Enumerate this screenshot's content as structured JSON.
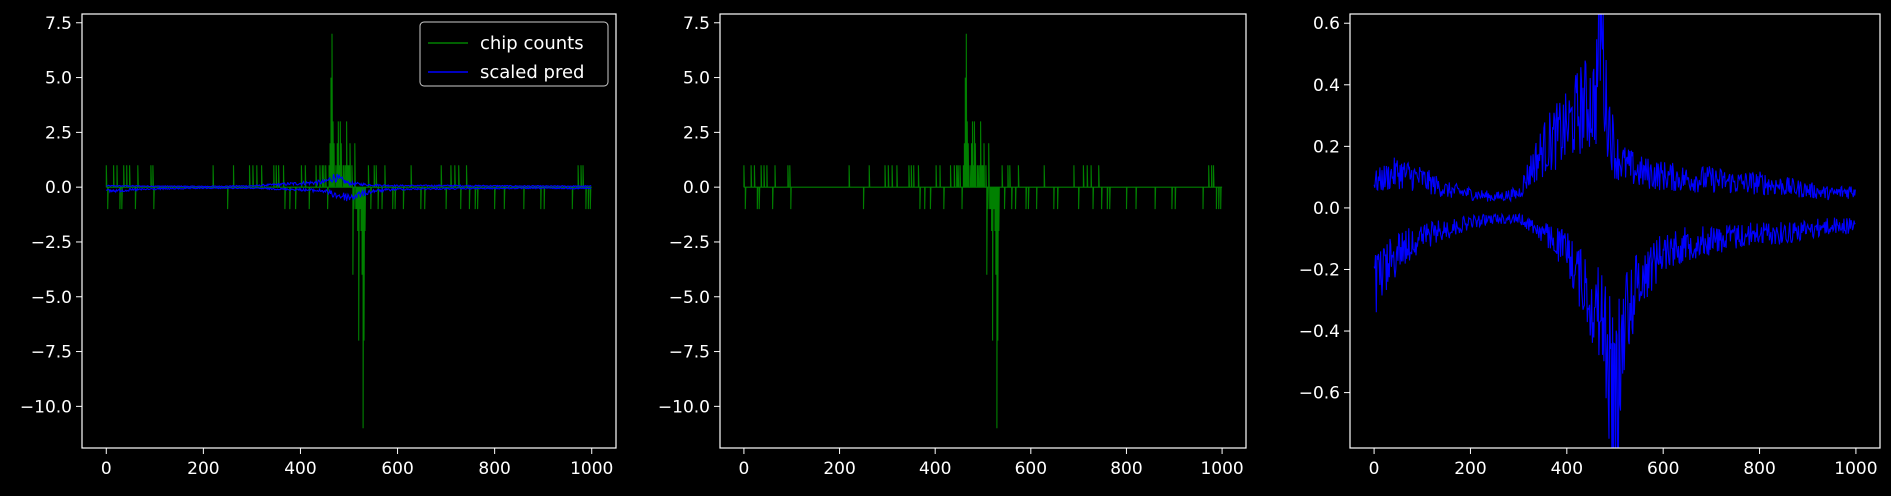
{
  "colors": {
    "background": "#000000",
    "axes": "#ffffff",
    "counts": "#008000",
    "pred": "#0000ff"
  },
  "chart_data": [
    {
      "type": "line",
      "title": "",
      "xlabel": "",
      "ylabel": "",
      "xlim": [
        -50,
        1050
      ],
      "ylim": [
        -11.9,
        7.9
      ],
      "xticks": [
        0,
        200,
        400,
        600,
        800,
        1000
      ],
      "yticks": [
        -10.0,
        -7.5,
        -5.0,
        -2.5,
        0.0,
        2.5,
        5.0,
        7.5
      ],
      "yticklabels": [
        "−10.0",
        "−7.5",
        "−5.0",
        "−2.5",
        "0.0",
        "2.5",
        "5.0",
        "7.5"
      ],
      "grid": false,
      "legend": {
        "placement": "upper right",
        "entries": [
          "chip counts",
          "scaled pred"
        ]
      },
      "series": [
        {
          "name": "chip counts",
          "color": "#008000",
          "spikes": [
            [
              0,
              1
            ],
            [
              3,
              -1
            ],
            [
              15,
              1
            ],
            [
              22,
              1
            ],
            [
              28,
              -1
            ],
            [
              32,
              -1
            ],
            [
              36,
              1
            ],
            [
              42,
              1
            ],
            [
              48,
              1
            ],
            [
              60,
              -1
            ],
            [
              65,
              1
            ],
            [
              92,
              1
            ],
            [
              96,
              1
            ],
            [
              98,
              -1
            ],
            [
              220,
              1
            ],
            [
              250,
              -1
            ],
            [
              262,
              1
            ],
            [
              295,
              1
            ],
            [
              302,
              1
            ],
            [
              310,
              1
            ],
            [
              320,
              1
            ],
            [
              345,
              1
            ],
            [
              350,
              1
            ],
            [
              355,
              1
            ],
            [
              365,
              1
            ],
            [
              368,
              -1
            ],
            [
              378,
              -1
            ],
            [
              390,
              -1
            ],
            [
              402,
              1
            ],
            [
              410,
              1
            ],
            [
              418,
              -1
            ],
            [
              432,
              1
            ],
            [
              440,
              1
            ],
            [
              445,
              1
            ],
            [
              448,
              1
            ],
            [
              452,
              1
            ],
            [
              456,
              -1
            ],
            [
              459,
              1
            ],
            [
              461,
              2
            ],
            [
              463,
              5
            ],
            [
              465,
              7
            ],
            [
              467,
              3
            ],
            [
              469,
              2
            ],
            [
              473,
              1
            ],
            [
              476,
              2
            ],
            [
              478,
              3
            ],
            [
              480,
              1
            ],
            [
              482,
              3
            ],
            [
              484,
              2
            ],
            [
              488,
              1
            ],
            [
              490,
              1
            ],
            [
              493,
              1
            ],
            [
              495,
              3
            ],
            [
              498,
              1
            ],
            [
              500,
              1
            ],
            [
              502,
              2
            ],
            [
              506,
              1
            ],
            [
              508,
              -4
            ],
            [
              510,
              -1
            ],
            [
              512,
              2
            ],
            [
              514,
              -1
            ],
            [
              516,
              -1
            ],
            [
              518,
              -2
            ],
            [
              520,
              -7
            ],
            [
              523,
              -1
            ],
            [
              525,
              -2
            ],
            [
              527,
              -4
            ],
            [
              529,
              -11
            ],
            [
              531,
              -7
            ],
            [
              533,
              -2
            ],
            [
              540,
              1
            ],
            [
              545,
              -1
            ],
            [
              552,
              1
            ],
            [
              556,
              1
            ],
            [
              560,
              -1
            ],
            [
              568,
              -1
            ],
            [
              574,
              1
            ],
            [
              590,
              -1
            ],
            [
              595,
              -1
            ],
            [
              612,
              -1
            ],
            [
              628,
              1
            ],
            [
              648,
              -1
            ],
            [
              656,
              -1
            ],
            [
              690,
              1
            ],
            [
              700,
              -1
            ],
            [
              710,
              1
            ],
            [
              718,
              1
            ],
            [
              726,
              1
            ],
            [
              730,
              -1
            ],
            [
              742,
              1
            ],
            [
              748,
              -1
            ],
            [
              760,
              -1
            ],
            [
              765,
              -1
            ],
            [
              800,
              -1
            ],
            [
              820,
              -1
            ],
            [
              860,
              -1
            ],
            [
              895,
              -1
            ],
            [
              902,
              -1
            ],
            [
              960,
              -1
            ],
            [
              972,
              1
            ],
            [
              978,
              1
            ],
            [
              982,
              1
            ],
            [
              988,
              -1
            ],
            [
              993,
              -1
            ],
            [
              997,
              -1
            ]
          ]
        },
        {
          "name": "scaled pred",
          "color": "#0000ff",
          "envelope": {
            "x": [
              0,
              100,
              200,
              300,
              400,
              450,
              470,
              500,
              550,
              600,
              700,
              800,
              900,
              1000
            ],
            "upper": [
              0.05,
              0.04,
              0.03,
              0.05,
              0.15,
              0.2,
              0.4,
              0.15,
              0.08,
              0.06,
              0.06,
              0.05,
              0.04,
              0.04
            ],
            "lower": [
              -0.15,
              -0.07,
              -0.04,
              -0.04,
              -0.1,
              -0.15,
              -0.3,
              -0.4,
              -0.15,
              -0.08,
              -0.06,
              -0.05,
              -0.04,
              -0.05
            ]
          }
        }
      ]
    },
    {
      "type": "line",
      "title": "",
      "xlabel": "",
      "ylabel": "",
      "xlim": [
        -50,
        1050
      ],
      "ylim": [
        -11.9,
        7.9
      ],
      "xticks": [
        0,
        200,
        400,
        600,
        800,
        1000
      ],
      "yticks": [
        -10.0,
        -7.5,
        -5.0,
        -2.5,
        0.0,
        2.5,
        5.0,
        7.5
      ],
      "yticklabels": [
        "−10.0",
        "−7.5",
        "−5.0",
        "−2.5",
        "0.0",
        "2.5",
        "5.0",
        "7.5"
      ],
      "grid": false,
      "series": [
        {
          "name": "",
          "color": "#008000",
          "spikes": [
            [
              0,
              1
            ],
            [
              3,
              -1
            ],
            [
              15,
              1
            ],
            [
              22,
              1
            ],
            [
              28,
              -1
            ],
            [
              32,
              -1
            ],
            [
              36,
              1
            ],
            [
              42,
              1
            ],
            [
              48,
              1
            ],
            [
              60,
              -1
            ],
            [
              65,
              1
            ],
            [
              92,
              1
            ],
            [
              96,
              1
            ],
            [
              98,
              -1
            ],
            [
              220,
              1
            ],
            [
              250,
              -1
            ],
            [
              262,
              1
            ],
            [
              295,
              1
            ],
            [
              302,
              1
            ],
            [
              310,
              1
            ],
            [
              320,
              1
            ],
            [
              345,
              1
            ],
            [
              350,
              1
            ],
            [
              355,
              1
            ],
            [
              365,
              1
            ],
            [
              368,
              -1
            ],
            [
              378,
              -1
            ],
            [
              390,
              -1
            ],
            [
              402,
              1
            ],
            [
              410,
              1
            ],
            [
              418,
              -1
            ],
            [
              432,
              1
            ],
            [
              440,
              1
            ],
            [
              445,
              1
            ],
            [
              448,
              1
            ],
            [
              452,
              1
            ],
            [
              456,
              -1
            ],
            [
              459,
              1
            ],
            [
              461,
              2
            ],
            [
              463,
              5
            ],
            [
              465,
              7
            ],
            [
              467,
              3
            ],
            [
              469,
              2
            ],
            [
              473,
              1
            ],
            [
              476,
              2
            ],
            [
              478,
              3
            ],
            [
              480,
              1
            ],
            [
              482,
              3
            ],
            [
              484,
              2
            ],
            [
              488,
              1
            ],
            [
              490,
              1
            ],
            [
              493,
              1
            ],
            [
              495,
              3
            ],
            [
              498,
              1
            ],
            [
              500,
              1
            ],
            [
              502,
              2
            ],
            [
              506,
              1
            ],
            [
              508,
              -4
            ],
            [
              510,
              -1
            ],
            [
              512,
              2
            ],
            [
              514,
              -1
            ],
            [
              516,
              -1
            ],
            [
              518,
              -2
            ],
            [
              520,
              -7
            ],
            [
              523,
              -1
            ],
            [
              525,
              -2
            ],
            [
              527,
              -4
            ],
            [
              529,
              -11
            ],
            [
              531,
              -7
            ],
            [
              533,
              -2
            ],
            [
              540,
              1
            ],
            [
              545,
              -1
            ],
            [
              552,
              1
            ],
            [
              556,
              1
            ],
            [
              560,
              -1
            ],
            [
              568,
              -1
            ],
            [
              574,
              1
            ],
            [
              590,
              -1
            ],
            [
              595,
              -1
            ],
            [
              612,
              -1
            ],
            [
              628,
              1
            ],
            [
              648,
              -1
            ],
            [
              656,
              -1
            ],
            [
              690,
              1
            ],
            [
              700,
              -1
            ],
            [
              710,
              1
            ],
            [
              718,
              1
            ],
            [
              726,
              1
            ],
            [
              730,
              -1
            ],
            [
              742,
              1
            ],
            [
              748,
              -1
            ],
            [
              760,
              -1
            ],
            [
              765,
              -1
            ],
            [
              800,
              -1
            ],
            [
              820,
              -1
            ],
            [
              860,
              -1
            ],
            [
              895,
              -1
            ],
            [
              902,
              -1
            ],
            [
              960,
              -1
            ],
            [
              972,
              1
            ],
            [
              978,
              1
            ],
            [
              982,
              1
            ],
            [
              988,
              -1
            ],
            [
              993,
              -1
            ],
            [
              997,
              -1
            ]
          ]
        }
      ]
    },
    {
      "type": "line",
      "title": "",
      "xlabel": "",
      "ylabel": "",
      "xlim": [
        -50,
        1050
      ],
      "ylim": [
        -0.78,
        0.63
      ],
      "xticks": [
        0,
        200,
        400,
        600,
        800,
        1000
      ],
      "yticks": [
        -0.6,
        -0.4,
        -0.2,
        0.0,
        0.2,
        0.4,
        0.6
      ],
      "yticklabels": [
        "−0.6",
        "−0.4",
        "−0.2",
        "0.0",
        "0.2",
        "0.4",
        "0.6"
      ],
      "grid": false,
      "series": [
        {
          "name": "",
          "color": "#0000ff",
          "envelope": {
            "x": [
              0,
              50,
              100,
              150,
              200,
              250,
              300,
              330,
              360,
              400,
              430,
              460,
              470,
              480,
              500,
              520,
              550,
              600,
              650,
              700,
              750,
              800,
              850,
              900,
              950,
              1000
            ],
            "upper": [
              0.07,
              0.1,
              0.08,
              0.05,
              0.04,
              0.03,
              0.04,
              0.12,
              0.18,
              0.22,
              0.28,
              0.3,
              0.55,
              0.3,
              0.15,
              0.12,
              0.1,
              0.09,
              0.08,
              0.08,
              0.07,
              0.07,
              0.06,
              0.05,
              0.04,
              0.05
            ],
            "lower": [
              -0.22,
              -0.12,
              -0.08,
              -0.06,
              -0.04,
              -0.03,
              -0.03,
              -0.05,
              -0.08,
              -0.12,
              -0.2,
              -0.28,
              -0.3,
              -0.35,
              -0.6,
              -0.3,
              -0.2,
              -0.12,
              -0.1,
              -0.09,
              -0.08,
              -0.07,
              -0.07,
              -0.06,
              -0.05,
              -0.05
            ]
          }
        }
      ]
    }
  ]
}
